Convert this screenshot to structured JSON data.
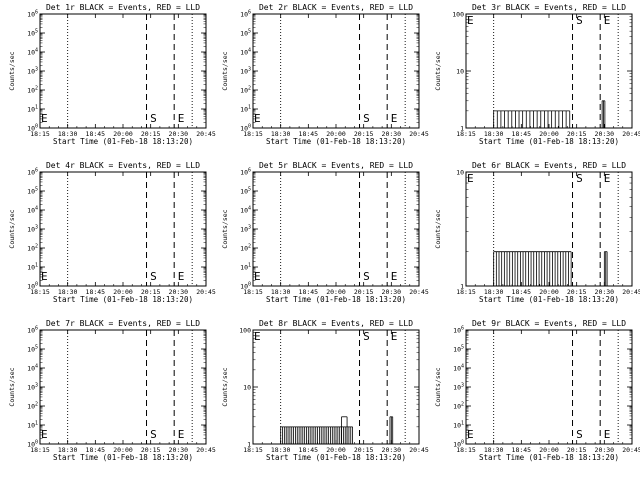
{
  "chart_data": [
    {
      "type": "line",
      "title": "Det 1r BLACK = Events, RED = LLD",
      "xlabel": "Start Time (01-Feb-18 18:13:20)",
      "ylabel": "Counts/sec",
      "yscale": "log",
      "ylim": [
        1,
        1000000
      ],
      "y_ticks": [
        "10^0",
        "10^1",
        "10^2",
        "10^3",
        "10^4",
        "10^5",
        "10^6"
      ],
      "x_ticks": [
        "18:15",
        "18:30",
        "18:45",
        "20:00",
        "20:15",
        "20:30",
        "20:45"
      ],
      "markers": [
        {
          "label": "E",
          "pos": "left"
        },
        {
          "label": "S",
          "pos": 4.1
        },
        {
          "label": "E",
          "pos": 5.1
        }
      ],
      "dotted_lines": [
        1.0,
        5.5
      ],
      "dashed_lines": [
        3.85,
        4.85
      ],
      "events": []
    },
    {
      "type": "line",
      "title": "Det 2r BLACK = Events, RED = LLD",
      "xlabel": "Start Time (01-Feb-18 18:13:20)",
      "ylabel": "Counts/sec",
      "yscale": "log",
      "ylim": [
        1,
        1000000
      ],
      "y_ticks": [
        "10^0",
        "10^1",
        "10^2",
        "10^3",
        "10^4",
        "10^5",
        "10^6"
      ],
      "x_ticks": [
        "18:15",
        "18:30",
        "18:45",
        "20:00",
        "20:15",
        "20:30",
        "20:45"
      ],
      "markers": [
        {
          "label": "E",
          "pos": "left"
        },
        {
          "label": "S",
          "pos": 4.1
        },
        {
          "label": "E",
          "pos": 5.1
        }
      ],
      "dotted_lines": [
        1.0,
        5.5
      ],
      "dashed_lines": [
        3.85,
        4.85
      ],
      "events": []
    },
    {
      "type": "line",
      "title": "Det 3r BLACK = Events, RED = LLD",
      "xlabel": "Start Time (01-Feb-18 18:13:20)",
      "ylabel": "Counts/sec",
      "yscale": "log",
      "ylim": [
        1,
        100
      ],
      "y_ticks": [
        "1",
        "10",
        "100"
      ],
      "x_ticks": [
        "18:15",
        "18:30",
        "18:45",
        "20:00",
        "20:15",
        "20:30",
        "20:45"
      ],
      "markers": [
        {
          "label": "E",
          "pos": "left"
        },
        {
          "label": "S",
          "pos": 4.1
        },
        {
          "label": "E",
          "pos": 5.1
        }
      ],
      "dotted_lines": [
        1.0,
        5.5
      ],
      "dashed_lines": [
        3.85,
        4.85
      ],
      "events": [
        {
          "x0": 1.0,
          "x1": 3.75,
          "y": 2,
          "count": 22
        },
        {
          "x0": 4.92,
          "x1": 5.02,
          "y": 3,
          "count": 3
        }
      ]
    },
    {
      "type": "line",
      "title": "Det 4r BLACK = Events, RED = LLD",
      "xlabel": "Start Time (01-Feb-18 18:13:20)",
      "ylabel": "Counts/sec",
      "yscale": "log",
      "ylim": [
        1,
        1000000
      ],
      "y_ticks": [
        "10^0",
        "10^1",
        "10^2",
        "10^3",
        "10^4",
        "10^5",
        "10^6"
      ],
      "x_ticks": [
        "18:15",
        "18:30",
        "18:45",
        "20:00",
        "20:15",
        "20:30",
        "20:45"
      ],
      "markers": [
        {
          "label": "E",
          "pos": "left"
        },
        {
          "label": "S",
          "pos": 4.1
        },
        {
          "label": "E",
          "pos": 5.1
        }
      ],
      "dotted_lines": [
        1.0,
        5.5
      ],
      "dashed_lines": [
        3.85,
        4.85
      ],
      "events": []
    },
    {
      "type": "line",
      "title": "Det 5r BLACK = Events, RED = LLD",
      "xlabel": "Start Time (01-Feb-18 18:13:20)",
      "ylabel": "Counts/sec",
      "yscale": "log",
      "ylim": [
        1,
        1000000
      ],
      "y_ticks": [
        "10^0",
        "10^1",
        "10^2",
        "10^3",
        "10^4",
        "10^5",
        "10^6"
      ],
      "x_ticks": [
        "18:15",
        "18:30",
        "18:45",
        "20:00",
        "20:15",
        "20:30",
        "20:45"
      ],
      "markers": [
        {
          "label": "E",
          "pos": "left"
        },
        {
          "label": "S",
          "pos": 4.1
        },
        {
          "label": "E",
          "pos": 5.1
        }
      ],
      "dotted_lines": [
        1.0,
        5.5
      ],
      "dashed_lines": [
        3.85,
        4.85
      ],
      "events": []
    },
    {
      "type": "line",
      "title": "Det 6r BLACK = Events, RED = LLD",
      "xlabel": "Start Time (01-Feb-18 18:13:20)",
      "ylabel": "Counts/sec",
      "yscale": "log",
      "ylim": [
        1,
        10
      ],
      "y_ticks": [
        "1",
        "10"
      ],
      "x_ticks": [
        "18:15",
        "18:30",
        "18:45",
        "20:00",
        "20:15",
        "20:30",
        "20:45"
      ],
      "markers": [
        {
          "label": "E",
          "pos": "left"
        },
        {
          "label": "S",
          "pos": 4.1
        },
        {
          "label": "E",
          "pos": 5.1
        }
      ],
      "dotted_lines": [
        1.0,
        5.5
      ],
      "dashed_lines": [
        3.85,
        4.85
      ],
      "events": [
        {
          "x0": 1.0,
          "x1": 3.8,
          "y": 2,
          "count": 30
        },
        {
          "x0": 5.0,
          "x1": 5.1,
          "y": 2,
          "count": 3
        }
      ]
    },
    {
      "type": "line",
      "title": "Det 7r BLACK = Events, RED = LLD",
      "xlabel": "Start Time (01-Feb-18 18:13:20)",
      "ylabel": "Counts/sec",
      "yscale": "log",
      "ylim": [
        1,
        1000000
      ],
      "y_ticks": [
        "10^0",
        "10^1",
        "10^2",
        "10^3",
        "10^4",
        "10^5",
        "10^6"
      ],
      "x_ticks": [
        "18:15",
        "18:30",
        "18:45",
        "20:00",
        "20:15",
        "20:30",
        "20:45"
      ],
      "markers": [
        {
          "label": "E",
          "pos": "left"
        },
        {
          "label": "S",
          "pos": 4.1
        },
        {
          "label": "E",
          "pos": 5.1
        }
      ],
      "dotted_lines": [
        1.0,
        5.5
      ],
      "dashed_lines": [
        3.85,
        4.85
      ],
      "events": []
    },
    {
      "type": "line",
      "title": "Det 8r BLACK = Events, RED = LLD",
      "xlabel": "Start Time (01-Feb-18 18:13:20)",
      "ylabel": "Counts/sec",
      "yscale": "log",
      "ylim": [
        1,
        100
      ],
      "y_ticks": [
        "1",
        "10",
        "100"
      ],
      "x_ticks": [
        "18:15",
        "18:30",
        "18:45",
        "20:00",
        "20:15",
        "20:30",
        "20:45"
      ],
      "markers": [
        {
          "label": "E",
          "pos": "left"
        },
        {
          "label": "S",
          "pos": 4.1
        },
        {
          "label": "E",
          "pos": 5.1
        }
      ],
      "dotted_lines": [
        1.0,
        5.5
      ],
      "dashed_lines": [
        3.85,
        4.85
      ],
      "events": [
        {
          "x0": 1.0,
          "x1": 3.6,
          "y": 2,
          "count": 40
        },
        {
          "x0": 3.2,
          "x1": 3.4,
          "y": 3,
          "count": 2
        },
        {
          "x0": 4.95,
          "x1": 5.05,
          "y": 3,
          "count": 3
        }
      ]
    },
    {
      "type": "line",
      "title": "Det 9r BLACK = Events, RED = LLD",
      "xlabel": "Start Time (01-Feb-18 18:13:20)",
      "ylabel": "Counts/sec",
      "yscale": "log",
      "ylim": [
        1,
        1000000
      ],
      "y_ticks": [
        "10^0",
        "10^1",
        "10^2",
        "10^3",
        "10^4",
        "10^5",
        "10^6"
      ],
      "x_ticks": [
        "18:15",
        "18:30",
        "18:45",
        "20:00",
        "20:15",
        "20:30",
        "20:45"
      ],
      "markers": [
        {
          "label": "E",
          "pos": "left"
        },
        {
          "label": "S",
          "pos": 4.1
        },
        {
          "label": "E",
          "pos": 5.1
        }
      ],
      "dotted_lines": [
        1.0,
        5.5
      ],
      "dashed_lines": [
        3.85,
        4.85
      ],
      "events": []
    }
  ]
}
